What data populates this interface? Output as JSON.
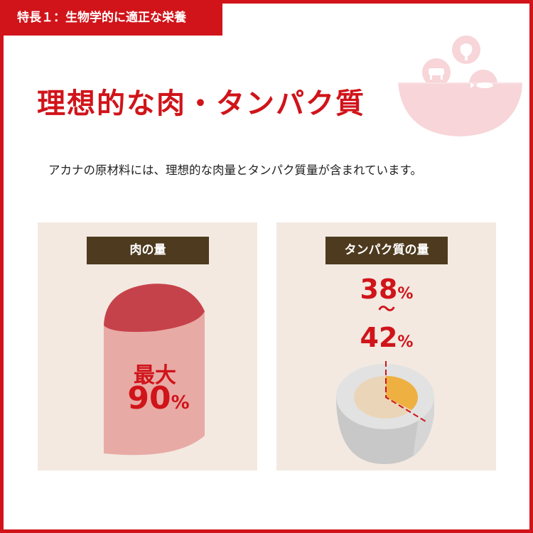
{
  "header": {
    "tab_label": "特長１：生物学的に適正な栄養",
    "title": "理想的な肉・タンパク質",
    "subtitle": "アカナの原材料には、理想的な肉量とタンパク質量が含まれています。"
  },
  "icons": [
    "chicken-icon",
    "cow-icon",
    "fish-icon",
    "bowl-icon"
  ],
  "meat_panel": {
    "label": "肉の量",
    "line1": "最大",
    "value": "90",
    "unit": "%"
  },
  "protein_panel": {
    "label": "タンパク質の量",
    "min": "38",
    "tilde": "～",
    "max": "42",
    "unit": "%"
  },
  "colors": {
    "accent": "#d0141a",
    "label_bg": "#4e3a1e",
    "panel_bg": "#f3e9e1"
  }
}
